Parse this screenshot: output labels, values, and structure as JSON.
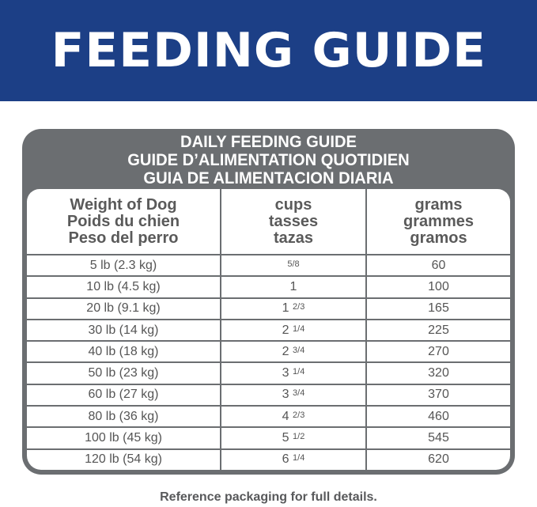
{
  "banner": {
    "title": "FEEDING GUIDE",
    "color": "#1c3f86"
  },
  "table": {
    "titles": [
      "DAILY FEEDING GUIDE",
      "GUIDE D’ALIMENTATION QUOTIDIEN",
      "GUIA DE ALIMENTACION DIARIA"
    ],
    "headers": [
      [
        "Weight of Dog",
        "Poids du chien",
        "Peso del perro"
      ],
      [
        "cups",
        "tasses",
        "tazas"
      ],
      [
        "grams",
        "grammes",
        "gramos"
      ]
    ],
    "rows": [
      [
        "5 lb (2.3 kg)",
        "5/8",
        "60"
      ],
      [
        "10 lb (4.5 kg)",
        "1",
        "100"
      ],
      [
        "20 lb (9.1 kg)",
        "1 2/3",
        "165"
      ],
      [
        "30 lb (14 kg)",
        "2 1/4",
        "225"
      ],
      [
        "40 lb (18 kg)",
        "2 3/4",
        "270"
      ],
      [
        "50 lb (23 kg)",
        "3 1/4",
        "320"
      ],
      [
        "60 lb (27 kg)",
        "3 3/4",
        "370"
      ],
      [
        "80 lb (36 kg)",
        "4 2/3",
        "460"
      ],
      [
        "100 lb (45 kg)",
        "5 1/2",
        "545"
      ],
      [
        "120 lb (54 kg)",
        "6 1/4",
        "620"
      ]
    ]
  },
  "footer": "Reference packaging for full details."
}
